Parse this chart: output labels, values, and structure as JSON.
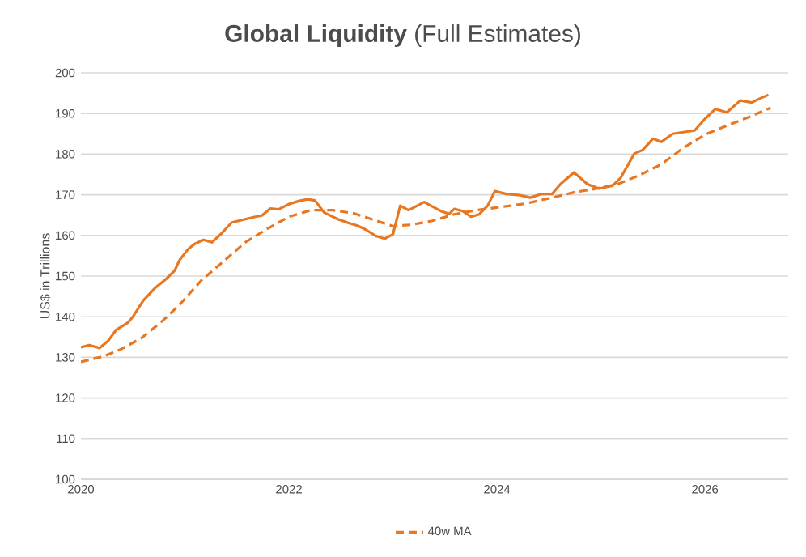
{
  "chart_data": {
    "type": "line",
    "title": "**Global Liquidity** (Full Estimates)",
    "ylabel": "US$ in Trillions",
    "xlim": [
      2020,
      2026.8
    ],
    "xticks": [
      2020,
      2022,
      2024,
      2026
    ],
    "ylim": [
      100,
      200
    ],
    "yticks": [
      100,
      110,
      120,
      130,
      140,
      150,
      160,
      170,
      180,
      190,
      200
    ],
    "grid": "y",
    "legend": "bottom",
    "marker": "none",
    "series": [
      {
        "color": "#e87722",
        "line_style": "solid",
        "x": [
          2020.0,
          2020.08,
          2020.18,
          2020.26,
          2020.34,
          2020.45,
          2020.5,
          2020.6,
          2020.71,
          2020.82,
          2020.9,
          2020.95,
          2021.03,
          2021.1,
          2021.18,
          2021.26,
          2021.34,
          2021.45,
          2021.55,
          2021.66,
          2021.74,
          2021.82,
          2021.9,
          2022.0,
          2022.1,
          2022.18,
          2022.25,
          2022.34,
          2022.47,
          2022.58,
          2022.66,
          2022.74,
          2022.84,
          2022.92,
          2023.0,
          2023.07,
          2023.15,
          2023.3,
          2023.46,
          2023.54,
          2023.59,
          2023.67,
          2023.75,
          2023.83,
          2023.91,
          2023.98,
          2024.09,
          2024.22,
          2024.32,
          2024.43,
          2024.53,
          2024.61,
          2024.74,
          2024.87,
          2024.98,
          2025.11,
          2025.19,
          2025.32,
          2025.4,
          2025.5,
          2025.58,
          2025.69,
          2025.79,
          2025.9,
          2026.0,
          2026.1,
          2026.21,
          2026.34,
          2026.45,
          2026.52,
          2026.61
        ],
        "values": [
          132.5,
          133,
          132.3,
          134,
          136.8,
          138.5,
          140,
          144,
          147,
          149.3,
          151.3,
          154,
          156.6,
          158,
          158.9,
          158.3,
          160.2,
          163.2,
          163.8,
          164.5,
          164.9,
          166.6,
          166.4,
          167.7,
          168.5,
          168.9,
          168.6,
          165.6,
          164,
          163,
          162.4,
          161.4,
          159.8,
          159.2,
          160.3,
          167.3,
          166.2,
          168.2,
          166,
          165.3,
          166.5,
          166,
          164.6,
          165.2,
          167.3,
          170.9,
          170.2,
          169.9,
          169.3,
          170.2,
          170.2,
          172.6,
          175.5,
          172.6,
          171.5,
          172.2,
          174.2,
          180.1,
          181,
          183.8,
          183,
          185,
          185.4,
          185.8,
          188.7,
          191.1,
          190.3,
          193.2,
          192.7,
          193.6,
          194.6
        ]
      },
      {
        "name": "40w MA",
        "color": "#e87722",
        "line_style": "dashed",
        "x": [
          2020.0,
          2020.21,
          2020.37,
          2020.58,
          2020.79,
          2020.95,
          2021.16,
          2021.37,
          2021.58,
          2021.79,
          2022.0,
          2022.21,
          2022.42,
          2022.63,
          2022.84,
          2023.0,
          2023.17,
          2023.38,
          2023.59,
          2023.8,
          2024.01,
          2024.27,
          2024.53,
          2024.74,
          2024.95,
          2025.16,
          2025.37,
          2025.58,
          2025.79,
          2026.0,
          2026.21,
          2026.42,
          2026.63
        ],
        "values": [
          128.9,
          130.2,
          131.8,
          134.7,
          139.1,
          143,
          149,
          153.6,
          158.3,
          161.6,
          164.6,
          166.2,
          166.2,
          165.4,
          163.6,
          162.3,
          162.6,
          163.6,
          165.2,
          166.2,
          166.9,
          167.8,
          169.3,
          170.6,
          171.5,
          172.6,
          174.8,
          177.5,
          181.5,
          184.8,
          187,
          189.1,
          191.4
        ]
      }
    ]
  }
}
